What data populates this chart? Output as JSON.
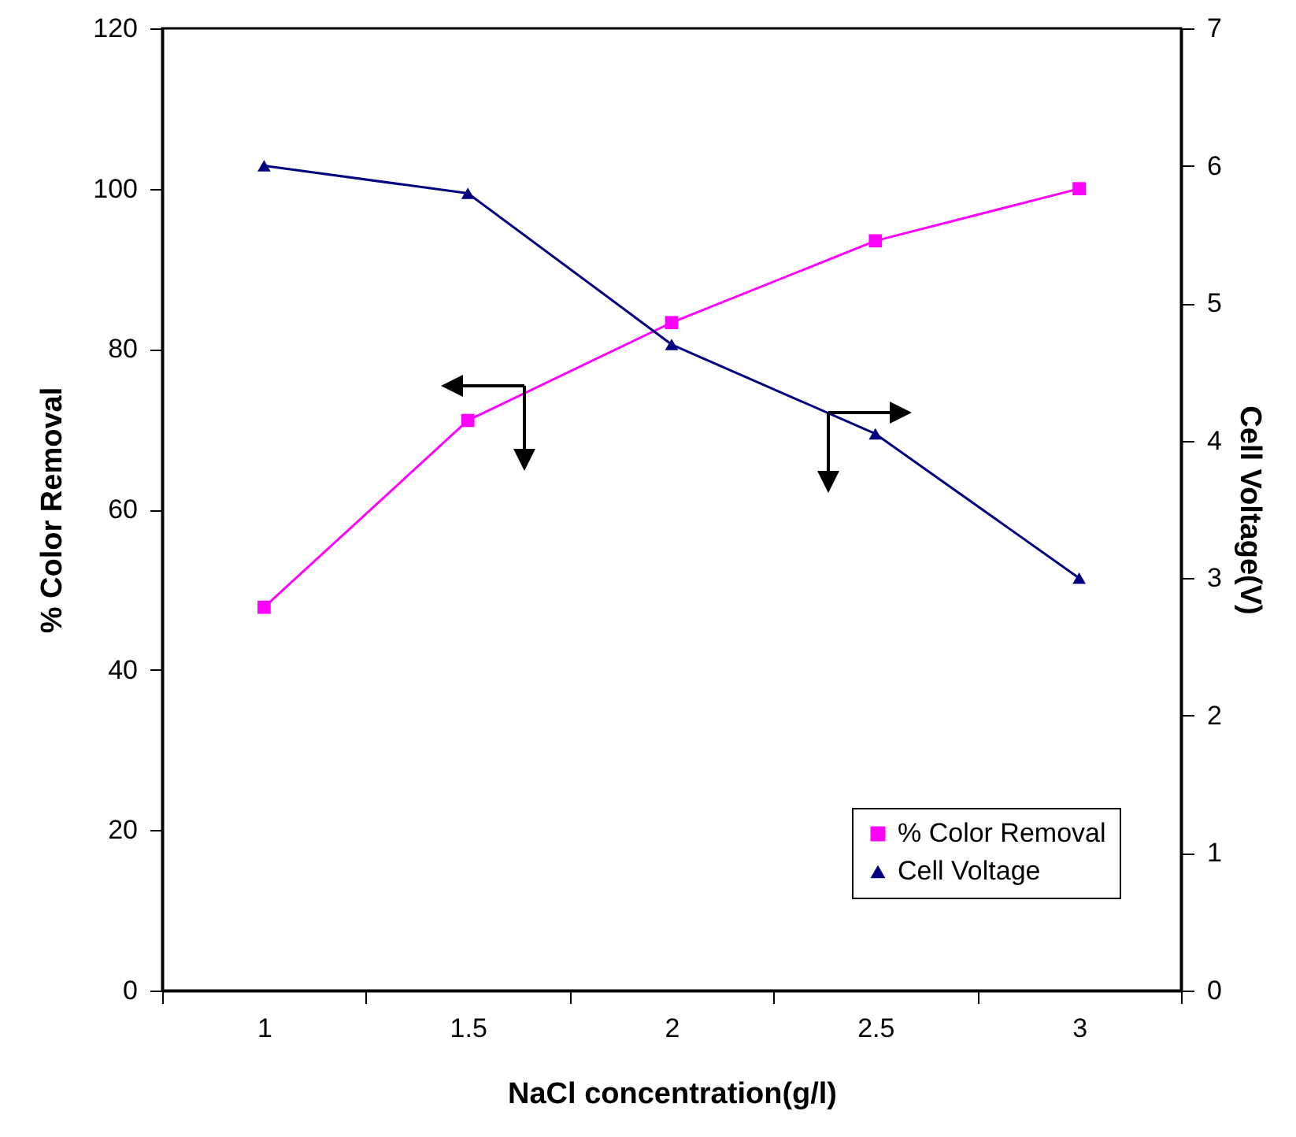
{
  "chart_data": {
    "type": "line",
    "xlabel": "NaCl concentration(g/l)",
    "ylabel": "% Color Removal",
    "y2label": "Cell Voltage(V)",
    "categories": [
      "1",
      "1.5",
      "2",
      "2.5",
      "3"
    ],
    "series": [
      {
        "name": "% Color Removal",
        "color": "#ff00ff",
        "marker": "square",
        "values": [
          47.8,
          71.1,
          83.3,
          93.5,
          100
        ]
      },
      {
        "name": "Cell Voltage",
        "color": "#000080",
        "marker": "triangle",
        "axis": "y2",
        "values": [
          6.0,
          5.8,
          4.7,
          4.05,
          3.0
        ]
      }
    ],
    "ylim": [
      0,
      120
    ],
    "yticks": [
      0,
      20,
      40,
      60,
      80,
      100,
      120
    ],
    "y2lim": [
      0,
      7
    ],
    "y2ticks": [
      0,
      1,
      2,
      3,
      4,
      5,
      6,
      7
    ],
    "grid": false,
    "legend": "bottom right"
  }
}
